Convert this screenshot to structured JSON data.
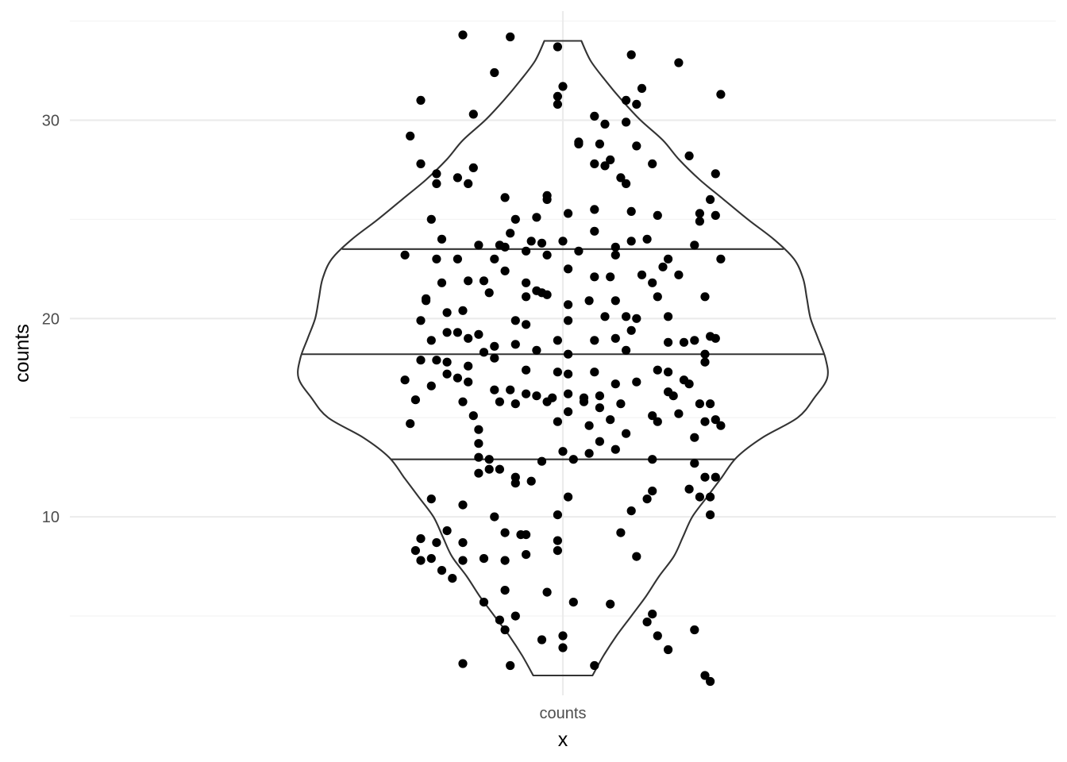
{
  "chart_data": {
    "type": "violin",
    "xlabel": "x",
    "ylabel": "counts",
    "categories": [
      "counts"
    ],
    "ylim": [
      1.0,
      35.5
    ],
    "y_ticks": [
      10,
      20,
      30
    ],
    "y_minor_ticks": [
      5,
      15,
      25,
      35
    ],
    "grid": true,
    "violin": {
      "y_min": 2.0,
      "y_max": 34.0,
      "quantiles": [
        12.9,
        18.2,
        23.5
      ],
      "density_profile": [
        [
          2.0,
          0.16
        ],
        [
          3.0,
          0.22
        ],
        [
          4.0,
          0.29
        ],
        [
          5.0,
          0.37
        ],
        [
          6.0,
          0.45
        ],
        [
          7.0,
          0.52
        ],
        [
          8.0,
          0.6
        ],
        [
          9.0,
          0.65
        ],
        [
          10.0,
          0.7
        ],
        [
          11.0,
          0.78
        ],
        [
          12.0,
          0.86
        ],
        [
          13.0,
          0.94
        ],
        [
          14.0,
          1.08
        ],
        [
          15.0,
          1.27
        ],
        [
          16.0,
          1.36
        ],
        [
          17.0,
          1.43
        ],
        [
          18.0,
          1.42
        ],
        [
          19.0,
          1.38
        ],
        [
          20.0,
          1.34
        ],
        [
          21.0,
          1.32
        ],
        [
          22.0,
          1.3
        ],
        [
          23.0,
          1.25
        ],
        [
          24.0,
          1.14
        ],
        [
          25.0,
          1.0
        ],
        [
          26.0,
          0.87
        ],
        [
          27.0,
          0.74
        ],
        [
          28.0,
          0.63
        ],
        [
          29.0,
          0.54
        ],
        [
          30.0,
          0.42
        ],
        [
          31.0,
          0.32
        ],
        [
          32.0,
          0.23
        ],
        [
          33.0,
          0.15
        ],
        [
          34.0,
          0.1
        ]
      ]
    },
    "points": [
      [
        -0.19,
        34.3
      ],
      [
        -0.1,
        34.2
      ],
      [
        -0.01,
        33.7
      ],
      [
        0.13,
        33.3
      ],
      [
        0.22,
        32.9
      ],
      [
        -0.13,
        32.4
      ],
      [
        -0.27,
        31.0
      ],
      [
        -0.17,
        30.3
      ],
      [
        -0.01,
        31.2
      ],
      [
        0.0,
        31.7
      ],
      [
        -0.01,
        30.8
      ],
      [
        0.15,
        31.6
      ],
      [
        0.12,
        31.0
      ],
      [
        0.14,
        30.8
      ],
      [
        0.3,
        31.3
      ],
      [
        0.06,
        30.2
      ],
      [
        0.08,
        29.8
      ],
      [
        0.12,
        29.9
      ],
      [
        -0.29,
        29.2
      ],
      [
        0.03,
        28.9
      ],
      [
        0.03,
        28.8
      ],
      [
        0.07,
        28.8
      ],
      [
        0.14,
        28.7
      ],
      [
        0.24,
        28.2
      ],
      [
        -0.27,
        27.8
      ],
      [
        -0.17,
        27.6
      ],
      [
        0.06,
        27.8
      ],
      [
        0.08,
        27.7
      ],
      [
        0.09,
        28.0
      ],
      [
        0.17,
        27.8
      ],
      [
        -0.24,
        27.3
      ],
      [
        -0.2,
        27.1
      ],
      [
        0.11,
        27.1
      ],
      [
        0.12,
        26.8
      ],
      [
        0.29,
        27.3
      ],
      [
        -0.24,
        26.8
      ],
      [
        -0.18,
        26.8
      ],
      [
        -0.11,
        26.1
      ],
      [
        -0.03,
        26.0
      ],
      [
        -0.03,
        26.2
      ],
      [
        0.06,
        25.5
      ],
      [
        0.01,
        25.3
      ],
      [
        0.13,
        25.4
      ],
      [
        0.18,
        25.2
      ],
      [
        0.26,
        25.3
      ],
      [
        0.28,
        26.0
      ],
      [
        0.29,
        25.2
      ],
      [
        -0.25,
        25.0
      ],
      [
        -0.09,
        25.0
      ],
      [
        -0.05,
        25.1
      ],
      [
        0.26,
        24.9
      ],
      [
        -0.23,
        24.0
      ],
      [
        -0.12,
        23.7
      ],
      [
        -0.16,
        23.7
      ],
      [
        -0.1,
        24.3
      ],
      [
        -0.06,
        23.9
      ],
      [
        -0.04,
        23.8
      ],
      [
        0.0,
        23.9
      ],
      [
        0.06,
        24.4
      ],
      [
        0.1,
        23.6
      ],
      [
        0.13,
        23.9
      ],
      [
        0.16,
        24.0
      ],
      [
        0.25,
        23.7
      ],
      [
        -0.3,
        23.2
      ],
      [
        -0.24,
        23.0
      ],
      [
        -0.2,
        23.0
      ],
      [
        -0.13,
        23.0
      ],
      [
        -0.11,
        23.6
      ],
      [
        -0.07,
        23.4
      ],
      [
        -0.03,
        23.2
      ],
      [
        0.03,
        23.4
      ],
      [
        0.1,
        23.2
      ],
      [
        0.2,
        23.0
      ],
      [
        0.3,
        23.0
      ],
      [
        -0.23,
        21.8
      ],
      [
        -0.18,
        21.9
      ],
      [
        -0.15,
        21.9
      ],
      [
        -0.11,
        22.4
      ],
      [
        -0.07,
        21.8
      ],
      [
        -0.05,
        21.4
      ],
      [
        0.01,
        22.5
      ],
      [
        0.06,
        22.1
      ],
      [
        0.09,
        22.1
      ],
      [
        0.15,
        22.2
      ],
      [
        0.17,
        21.8
      ],
      [
        0.19,
        22.6
      ],
      [
        0.22,
        22.2
      ],
      [
        -0.26,
        21.0
      ],
      [
        -0.14,
        21.3
      ],
      [
        -0.07,
        21.1
      ],
      [
        -0.04,
        21.3
      ],
      [
        -0.03,
        21.2
      ],
      [
        0.01,
        20.7
      ],
      [
        0.05,
        20.9
      ],
      [
        0.1,
        20.9
      ],
      [
        0.18,
        21.1
      ],
      [
        0.27,
        21.1
      ],
      [
        -0.26,
        20.9
      ],
      [
        -0.22,
        20.3
      ],
      [
        -0.19,
        20.4
      ],
      [
        -0.09,
        19.9
      ],
      [
        -0.07,
        19.7
      ],
      [
        0.01,
        19.9
      ],
      [
        0.08,
        20.1
      ],
      [
        0.12,
        20.1
      ],
      [
        0.14,
        20.0
      ],
      [
        0.2,
        20.1
      ],
      [
        -0.27,
        19.9
      ],
      [
        -0.25,
        18.9
      ],
      [
        -0.22,
        19.3
      ],
      [
        -0.2,
        19.3
      ],
      [
        -0.16,
        19.2
      ],
      [
        -0.18,
        19.0
      ],
      [
        -0.13,
        18.6
      ],
      [
        -0.09,
        18.7
      ],
      [
        -0.05,
        18.4
      ],
      [
        -0.01,
        18.9
      ],
      [
        0.01,
        18.2
      ],
      [
        0.06,
        18.9
      ],
      [
        0.1,
        19.0
      ],
      [
        0.13,
        19.4
      ],
      [
        0.2,
        18.8
      ],
      [
        0.23,
        18.8
      ],
      [
        0.25,
        18.9
      ],
      [
        0.29,
        19.0
      ],
      [
        0.28,
        19.1
      ],
      [
        -0.27,
        17.9
      ],
      [
        -0.24,
        17.9
      ],
      [
        -0.22,
        17.8
      ],
      [
        -0.18,
        17.6
      ],
      [
        -0.15,
        18.3
      ],
      [
        -0.13,
        18.0
      ],
      [
        -0.07,
        17.4
      ],
      [
        -0.01,
        17.3
      ],
      [
        0.01,
        17.2
      ],
      [
        0.06,
        17.3
      ],
      [
        0.12,
        18.4
      ],
      [
        0.18,
        17.4
      ],
      [
        0.2,
        17.3
      ],
      [
        0.23,
        16.9
      ],
      [
        0.27,
        17.8
      ],
      [
        0.27,
        18.2
      ],
      [
        -0.3,
        16.9
      ],
      [
        -0.25,
        16.6
      ],
      [
        -0.22,
        17.2
      ],
      [
        -0.2,
        17.0
      ],
      [
        -0.18,
        16.8
      ],
      [
        -0.13,
        16.4
      ],
      [
        -0.1,
        16.4
      ],
      [
        -0.07,
        16.2
      ],
      [
        -0.05,
        16.1
      ],
      [
        -0.02,
        16.0
      ],
      [
        0.01,
        16.2
      ],
      [
        0.04,
        16.0
      ],
      [
        0.07,
        16.1
      ],
      [
        0.1,
        16.7
      ],
      [
        0.14,
        16.8
      ],
      [
        0.2,
        16.3
      ],
      [
        0.21,
        16.1
      ],
      [
        0.24,
        16.7
      ],
      [
        -0.28,
        15.9
      ],
      [
        -0.19,
        15.8
      ],
      [
        -0.12,
        15.8
      ],
      [
        -0.09,
        15.7
      ],
      [
        -0.03,
        15.8
      ],
      [
        0.01,
        15.3
      ],
      [
        0.04,
        15.8
      ],
      [
        0.07,
        15.5
      ],
      [
        0.11,
        15.7
      ],
      [
        0.17,
        15.1
      ],
      [
        0.22,
        15.2
      ],
      [
        0.26,
        15.7
      ],
      [
        0.28,
        15.7
      ],
      [
        -0.29,
        14.7
      ],
      [
        -0.17,
        15.1
      ],
      [
        -0.16,
        14.4
      ],
      [
        -0.01,
        14.8
      ],
      [
        0.05,
        14.6
      ],
      [
        0.09,
        14.9
      ],
      [
        0.12,
        14.2
      ],
      [
        0.18,
        14.8
      ],
      [
        0.25,
        14.0
      ],
      [
        0.27,
        14.8
      ],
      [
        0.29,
        14.9
      ],
      [
        0.3,
        14.6
      ],
      [
        -0.16,
        13.7
      ],
      [
        -0.16,
        13.0
      ],
      [
        -0.14,
        12.9
      ],
      [
        -0.04,
        12.8
      ],
      [
        0.0,
        13.3
      ],
      [
        0.02,
        12.9
      ],
      [
        0.05,
        13.2
      ],
      [
        0.07,
        13.8
      ],
      [
        0.1,
        13.4
      ],
      [
        0.17,
        12.9
      ],
      [
        0.25,
        12.7
      ],
      [
        -0.16,
        12.2
      ],
      [
        -0.14,
        12.4
      ],
      [
        -0.12,
        12.4
      ],
      [
        -0.09,
        11.7
      ],
      [
        -0.06,
        11.8
      ],
      [
        -0.09,
        12.0
      ],
      [
        0.17,
        11.3
      ],
      [
        0.24,
        11.4
      ],
      [
        0.26,
        11.0
      ],
      [
        0.28,
        11.0
      ],
      [
        0.27,
        12.0
      ],
      [
        0.29,
        12.0
      ],
      [
        -0.25,
        10.9
      ],
      [
        -0.19,
        10.6
      ],
      [
        -0.13,
        10.0
      ],
      [
        -0.01,
        10.1
      ],
      [
        0.01,
        11.0
      ],
      [
        0.16,
        10.9
      ],
      [
        0.13,
        10.3
      ],
      [
        0.28,
        10.1
      ],
      [
        -0.27,
        8.9
      ],
      [
        -0.24,
        8.7
      ],
      [
        -0.22,
        9.3
      ],
      [
        -0.19,
        8.7
      ],
      [
        -0.11,
        9.2
      ],
      [
        -0.08,
        9.1
      ],
      [
        -0.07,
        9.1
      ],
      [
        -0.01,
        8.8
      ],
      [
        0.11,
        9.2
      ],
      [
        -0.28,
        8.3
      ],
      [
        -0.27,
        7.8
      ],
      [
        -0.25,
        7.9
      ],
      [
        -0.23,
        7.3
      ],
      [
        -0.21,
        6.9
      ],
      [
        -0.19,
        7.8
      ],
      [
        -0.15,
        7.9
      ],
      [
        -0.11,
        7.8
      ],
      [
        -0.07,
        8.1
      ],
      [
        -0.01,
        8.3
      ],
      [
        0.14,
        8.0
      ],
      [
        -0.15,
        5.7
      ],
      [
        -0.11,
        6.3
      ],
      [
        -0.03,
        6.2
      ],
      [
        0.02,
        5.7
      ],
      [
        0.09,
        5.6
      ],
      [
        -0.12,
        4.8
      ],
      [
        -0.11,
        4.3
      ],
      [
        -0.09,
        5.0
      ],
      [
        0.16,
        4.7
      ],
      [
        0.17,
        5.1
      ],
      [
        -0.04,
        3.8
      ],
      [
        0.0,
        4.0
      ],
      [
        0.0,
        3.4
      ],
      [
        0.18,
        4.0
      ],
      [
        0.2,
        3.3
      ],
      [
        0.25,
        4.3
      ],
      [
        -0.19,
        2.6
      ],
      [
        -0.1,
        2.5
      ],
      [
        0.06,
        2.5
      ],
      [
        0.28,
        1.7
      ],
      [
        0.27,
        2.0
      ]
    ]
  }
}
